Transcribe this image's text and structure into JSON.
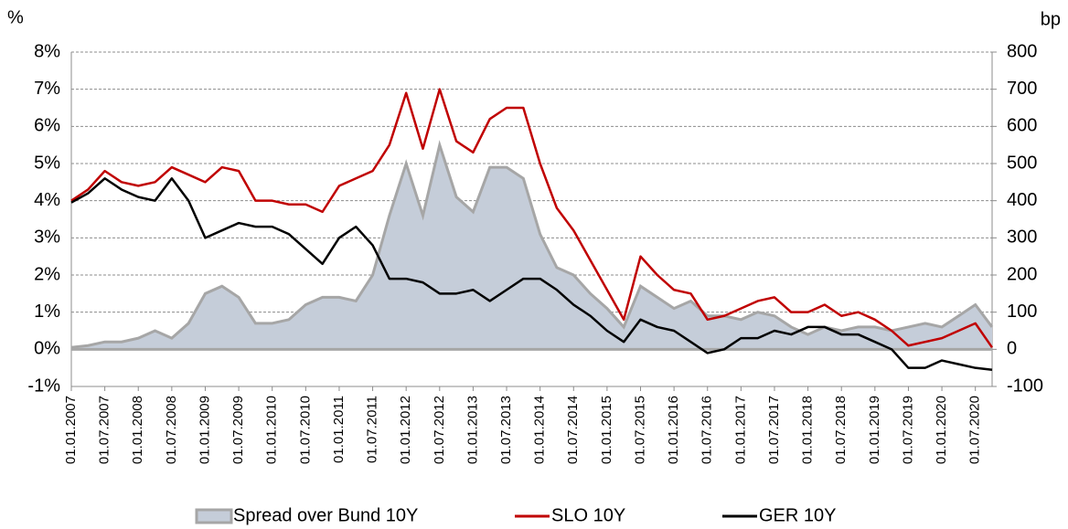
{
  "chart_data": {
    "type": "line",
    "y_title": "%",
    "y2_title": "bp",
    "xlim": [
      "01.01.2007",
      "01.10.2020"
    ],
    "ylim": [
      -1,
      8
    ],
    "yticks": [
      {
        "value": -1,
        "label": "-1%"
      },
      {
        "value": 0,
        "label": "0%"
      },
      {
        "value": 1,
        "label": "1%"
      },
      {
        "value": 2,
        "label": "2%"
      },
      {
        "value": 3,
        "label": "3%"
      },
      {
        "value": 4,
        "label": "4%"
      },
      {
        "value": 5,
        "label": "5%"
      },
      {
        "value": 6,
        "label": "6%"
      },
      {
        "value": 7,
        "label": "7%"
      },
      {
        "value": 8,
        "label": "8%"
      }
    ],
    "y2lim": [
      -100,
      800
    ],
    "y2ticks": [
      -100,
      0,
      100,
      200,
      300,
      400,
      500,
      600,
      700,
      800
    ],
    "xticks": [
      "01.01.2007",
      "01.07.2007",
      "01.01.2008",
      "01.07.2008",
      "01.01.2009",
      "01.07.2009",
      "01.01.2010",
      "01.07.2010",
      "01.01.2011",
      "01.07.2011",
      "01.01.2012",
      "01.07.2012",
      "01.01.2013",
      "01.07.2013",
      "01.01.2014",
      "01.07.2014",
      "01.01.2015",
      "01.07.2015",
      "01.01.2016",
      "01.07.2016",
      "01.01.2017",
      "01.07.2017",
      "01.01.2018",
      "01.07.2018",
      "01.01.2019",
      "01.07.2019",
      "01.01.2020",
      "01.07.2020"
    ],
    "grid": true,
    "legend": "bottom",
    "x": [
      "01.01.2007",
      "01.04.2007",
      "01.07.2007",
      "01.10.2007",
      "01.01.2008",
      "01.04.2008",
      "01.07.2008",
      "01.10.2008",
      "01.01.2009",
      "01.04.2009",
      "01.07.2009",
      "01.10.2009",
      "01.01.2010",
      "01.04.2010",
      "01.07.2010",
      "01.10.2010",
      "01.01.2011",
      "01.04.2011",
      "01.07.2011",
      "01.10.2011",
      "01.01.2012",
      "01.04.2012",
      "01.07.2012",
      "01.10.2012",
      "01.01.2013",
      "01.04.2013",
      "01.07.2013",
      "01.10.2013",
      "01.01.2014",
      "01.04.2014",
      "01.07.2014",
      "01.10.2014",
      "01.01.2015",
      "01.04.2015",
      "01.07.2015",
      "01.10.2015",
      "01.01.2016",
      "01.04.2016",
      "01.07.2016",
      "01.10.2016",
      "01.01.2017",
      "01.04.2017",
      "01.07.2017",
      "01.10.2017",
      "01.01.2018",
      "01.04.2018",
      "01.07.2018",
      "01.10.2018",
      "01.01.2019",
      "01.04.2019",
      "01.07.2019",
      "01.10.2019",
      "01.01.2020",
      "01.04.2020",
      "01.07.2020",
      "01.10.2020"
    ],
    "series": [
      {
        "name": "Spread over Bund 10Y",
        "type": "area",
        "axis": "y2",
        "color": "#a6a6a6",
        "fill": "#c5cdd9",
        "values": [
          5,
          10,
          20,
          20,
          30,
          50,
          30,
          70,
          150,
          170,
          140,
          70,
          70,
          80,
          120,
          140,
          140,
          130,
          200,
          360,
          500,
          360,
          550,
          410,
          370,
          490,
          490,
          460,
          310,
          220,
          200,
          150,
          110,
          60,
          170,
          140,
          110,
          130,
          90,
          90,
          80,
          100,
          90,
          60,
          40,
          60,
          50,
          60,
          60,
          50,
          60,
          70,
          60,
          90,
          120,
          60
        ]
      },
      {
        "name": "SLO 10Y",
        "type": "line",
        "color": "#c00000",
        "values": [
          4.0,
          4.3,
          4.8,
          4.5,
          4.4,
          4.5,
          4.9,
          4.7,
          4.5,
          4.9,
          4.8,
          4.0,
          4.0,
          3.9,
          3.9,
          3.7,
          4.4,
          4.6,
          4.8,
          5.5,
          6.9,
          5.4,
          7.0,
          5.6,
          5.3,
          6.2,
          6.5,
          6.5,
          5.0,
          3.8,
          3.2,
          2.4,
          1.6,
          0.8,
          2.5,
          2.0,
          1.6,
          1.5,
          0.8,
          0.9,
          1.1,
          1.3,
          1.4,
          1.0,
          1.0,
          1.2,
          0.9,
          1.0,
          0.8,
          0.5,
          0.1,
          0.2,
          0.3,
          0.5,
          0.7,
          0.05
        ]
      },
      {
        "name": "GER 10Y",
        "type": "line",
        "color": "#000000",
        "values": [
          3.95,
          4.2,
          4.6,
          4.3,
          4.1,
          4.0,
          4.6,
          4.0,
          3.0,
          3.2,
          3.4,
          3.3,
          3.3,
          3.1,
          2.7,
          2.3,
          3.0,
          3.3,
          2.8,
          1.9,
          1.9,
          1.8,
          1.5,
          1.5,
          1.6,
          1.3,
          1.6,
          1.9,
          1.9,
          1.6,
          1.2,
          0.9,
          0.5,
          0.2,
          0.8,
          0.6,
          0.5,
          0.2,
          -0.1,
          0.0,
          0.3,
          0.3,
          0.5,
          0.4,
          0.6,
          0.6,
          0.4,
          0.4,
          0.2,
          0.0,
          -0.5,
          -0.5,
          -0.3,
          -0.4,
          -0.5,
          -0.55
        ]
      }
    ]
  }
}
